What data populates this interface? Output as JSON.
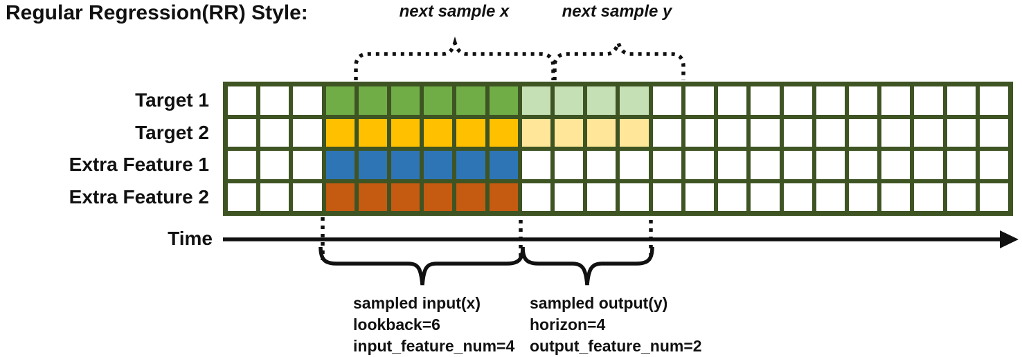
{
  "title": "Regular Regression(RR) Style:",
  "top_annotations": {
    "next_sample_x": "next sample x",
    "next_sample_y": "next sample y"
  },
  "time_axis": {
    "label": "Time"
  },
  "grid": {
    "columns": 24,
    "input_start_col": 3,
    "lookback": 6,
    "horizon": 4,
    "line_color": "#3E5423",
    "cell_color": "#FFFFFF",
    "rows": [
      {
        "label": "Target 1",
        "type": "target",
        "input_color": "#70AD47",
        "output_color": "#C5E0B4"
      },
      {
        "label": "Target 2",
        "type": "target",
        "input_color": "#FFC000",
        "output_color": "#FFE699"
      },
      {
        "label": "Extra Feature 1",
        "type": "extra_feature",
        "input_color": "#2E75B6",
        "output_color": null
      },
      {
        "label": "Extra Feature 2",
        "type": "extra_feature",
        "input_color": "#C55A11",
        "output_color": null
      }
    ]
  },
  "bottom_annotations": {
    "input": {
      "lines": [
        "sampled input(x)",
        "lookback=6",
        "input_feature_num=4"
      ]
    },
    "output": {
      "lines": [
        "sampled output(y)",
        "horizon=4",
        "output_feature_num=2"
      ]
    }
  }
}
